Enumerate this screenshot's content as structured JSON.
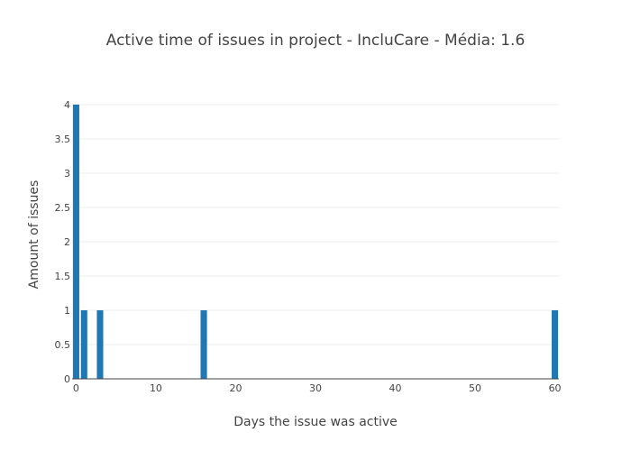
{
  "chart_data": {
    "type": "bar",
    "title": "Active time of issues in project - IncluCare - Média: 1.6",
    "xlabel": "Days the issue was active",
    "ylabel": "Amount of issues",
    "xlim": [
      -0.5,
      60.5
    ],
    "ylim": [
      0,
      4
    ],
    "x_ticks": [
      0,
      10,
      20,
      30,
      40,
      50,
      60
    ],
    "y_ticks": [
      0,
      0.5,
      1,
      1.5,
      2,
      2.5,
      3,
      3.5,
      4
    ],
    "x": [
      0,
      1,
      3,
      16,
      60
    ],
    "values": [
      4,
      1,
      1,
      1,
      1
    ],
    "bar_color": "#1f77b4",
    "grid": true,
    "legend": "none"
  }
}
